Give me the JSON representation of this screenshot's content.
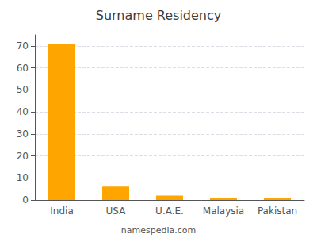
{
  "chart_data": {
    "type": "bar",
    "title": "Surname Residency",
    "categories": [
      "India",
      "USA",
      "U.A.E.",
      "Malaysia",
      "Pakistan"
    ],
    "values": [
      71,
      6,
      2,
      1,
      1
    ],
    "color": "#FFA500",
    "ylim": [
      0,
      75
    ],
    "yticks": [
      0,
      10,
      20,
      30,
      40,
      50,
      60,
      70
    ],
    "grid": true,
    "annotations": [
      "namespedia.com"
    ]
  }
}
